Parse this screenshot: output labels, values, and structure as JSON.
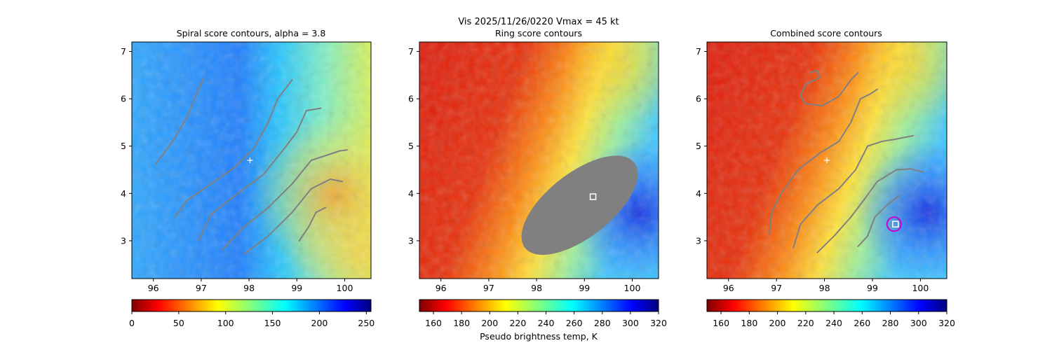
{
  "figure": {
    "suptitle_line1": "Vis  2025/11/26/0220    Vmax = 45 kt"
  },
  "colors": {
    "contour": "#808080",
    "center_marker": "#ffffff",
    "ring_marker": "#cc00cc",
    "jet": [
      "#7f0000",
      "#ff0000",
      "#ff7f00",
      "#ffff00",
      "#7fff7f",
      "#00ffff",
      "#007fff",
      "#0000ff",
      "#00007f"
    ]
  },
  "chart_data": [
    {
      "type": "heatmap",
      "title": "Spiral score contours, alpha =  3.8",
      "xlim": [
        95.55,
        100.55
      ],
      "ylim": [
        2.2,
        7.2
      ],
      "xticks": [
        "96",
        "97",
        "98",
        "99",
        "100"
      ],
      "yticks": [
        "3",
        "4",
        "5",
        "6",
        "7"
      ],
      "colormap": "jet_r",
      "colorbar": {
        "range": [
          0,
          255
        ],
        "ticks": [
          "0",
          "50",
          "100",
          "150",
          "200",
          "250"
        ],
        "label": ""
      },
      "center_marker": {
        "x": 98.02,
        "y": 4.7,
        "symbol": "+"
      },
      "contours": [
        [
          [
            96.05,
            4.62
          ],
          [
            96.4,
            5.1
          ],
          [
            96.7,
            5.6
          ],
          [
            96.9,
            6.1
          ],
          [
            97.05,
            6.42
          ]
        ],
        [
          [
            96.45,
            3.5
          ],
          [
            96.7,
            3.85
          ],
          [
            97.2,
            4.2
          ],
          [
            97.7,
            4.55
          ],
          [
            98.1,
            4.95
          ],
          [
            98.4,
            5.5
          ],
          [
            98.6,
            6.0
          ],
          [
            98.9,
            6.4
          ]
        ],
        [
          [
            96.95,
            3.0
          ],
          [
            97.2,
            3.55
          ],
          [
            97.7,
            3.95
          ],
          [
            98.3,
            4.4
          ],
          [
            98.7,
            4.9
          ],
          [
            99.0,
            5.3
          ],
          [
            99.2,
            5.75
          ],
          [
            99.5,
            5.8
          ]
        ],
        [
          [
            97.45,
            2.82
          ],
          [
            97.9,
            3.3
          ],
          [
            98.4,
            3.7
          ],
          [
            98.9,
            4.2
          ],
          [
            99.3,
            4.7
          ],
          [
            99.9,
            4.9
          ],
          [
            100.05,
            4.92
          ]
        ],
        [
          [
            97.9,
            2.72
          ],
          [
            98.4,
            3.1
          ],
          [
            98.9,
            3.6
          ],
          [
            99.3,
            4.1
          ],
          [
            99.7,
            4.3
          ],
          [
            99.95,
            4.25
          ]
        ],
        [
          [
            99.05,
            3.0
          ],
          [
            99.25,
            3.3
          ],
          [
            99.4,
            3.6
          ],
          [
            99.6,
            3.7
          ]
        ]
      ]
    },
    {
      "type": "heatmap",
      "title": "Ring score contours",
      "xlim": [
        95.55,
        100.55
      ],
      "ylim": [
        2.2,
        7.2
      ],
      "xticks": [
        "96",
        "97",
        "98",
        "99",
        "100"
      ],
      "yticks": [
        "3",
        "4",
        "5",
        "6",
        "7"
      ],
      "colormap": "jet",
      "colorbar": {
        "range": [
          150,
          320
        ],
        "ticks": [
          "160",
          "180",
          "200",
          "220",
          "240",
          "260",
          "280",
          "300",
          "320"
        ],
        "label": "Pseudo brightness temp, K"
      },
      "ring_region": {
        "center": [
          98.9,
          3.75
        ],
        "semi_major": 1.45,
        "semi_minor": 0.68,
        "angle_deg": 38
      },
      "square_marker": {
        "x": 99.18,
        "y": 3.93
      }
    },
    {
      "type": "heatmap",
      "title": "Combined score contours",
      "xlim": [
        95.55,
        100.55
      ],
      "ylim": [
        2.2,
        7.2
      ],
      "xticks": [
        "96",
        "97",
        "98",
        "99",
        "100"
      ],
      "yticks": [
        "3",
        "4",
        "5",
        "6",
        "7"
      ],
      "colormap": "jet",
      "colorbar": {
        "range": [
          150,
          320
        ],
        "ticks": [
          "160",
          "180",
          "200",
          "220",
          "240",
          "260",
          "280",
          "300",
          "320"
        ],
        "label": ""
      },
      "center_marker": {
        "x": 98.05,
        "y": 4.7,
        "symbol": "+"
      },
      "square_marker": {
        "x": 99.48,
        "y": 3.35
      },
      "circle_marker": {
        "x": 99.45,
        "y": 3.35
      },
      "contours": [
        [
          [
            97.7,
            6.55
          ],
          [
            97.85,
            6.6
          ],
          [
            97.9,
            6.45
          ],
          [
            97.6,
            6.3
          ],
          [
            97.5,
            6.05
          ],
          [
            97.6,
            5.9
          ],
          [
            97.95,
            5.85
          ],
          [
            98.3,
            6.05
          ],
          [
            98.55,
            6.4
          ],
          [
            98.7,
            6.55
          ]
        ],
        [
          [
            96.85,
            3.15
          ],
          [
            96.9,
            3.6
          ],
          [
            97.1,
            4.0
          ],
          [
            97.45,
            4.5
          ],
          [
            97.9,
            4.85
          ],
          [
            98.3,
            5.1
          ],
          [
            98.55,
            5.5
          ],
          [
            98.75,
            6.0
          ],
          [
            98.95,
            6.1
          ],
          [
            99.1,
            6.2
          ]
        ],
        [
          [
            97.35,
            2.85
          ],
          [
            97.5,
            3.35
          ],
          [
            97.85,
            3.75
          ],
          [
            98.3,
            4.1
          ],
          [
            98.65,
            4.5
          ],
          [
            98.9,
            5.0
          ],
          [
            99.2,
            5.1
          ],
          [
            99.5,
            5.15
          ],
          [
            99.85,
            5.22
          ]
        ],
        [
          [
            97.85,
            2.75
          ],
          [
            98.2,
            3.1
          ],
          [
            98.55,
            3.5
          ],
          [
            98.85,
            3.9
          ],
          [
            99.1,
            4.25
          ],
          [
            99.5,
            4.5
          ],
          [
            99.8,
            4.52
          ],
          [
            100.05,
            4.45
          ]
        ],
        [
          [
            98.7,
            2.88
          ],
          [
            98.9,
            3.1
          ],
          [
            99.05,
            3.5
          ],
          [
            99.3,
            3.75
          ],
          [
            99.55,
            3.95
          ]
        ]
      ]
    }
  ]
}
